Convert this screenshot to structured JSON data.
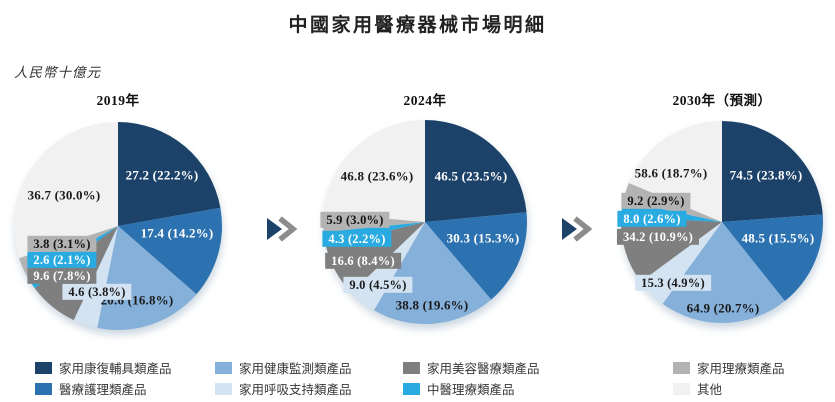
{
  "chart_data": {
    "type": "pie",
    "title": "中國家用醫療器械市場明細",
    "unit_label": "人民幣十億元",
    "categories": [
      "家用康復輔具類產品",
      "醫療護理類產品",
      "家用健康監測類產品",
      "家用呼吸支持類產品",
      "家用美容醫療類產品",
      "中醫理療類產品",
      "家用理療類產品",
      "其他"
    ],
    "colors": [
      "#1d4269",
      "#2d72b0",
      "#85b0da",
      "#d3e3f2",
      "#7f7f7f",
      "#29abe2",
      "#b3b3b3",
      "#f1f1f1"
    ],
    "pies": [
      {
        "year_label": "2019年",
        "values": [
          27.2,
          17.4,
          20.6,
          4.6,
          9.6,
          2.6,
          3.8,
          36.7
        ],
        "percents": [
          22.2,
          14.2,
          16.8,
          3.8,
          7.8,
          2.1,
          3.1,
          30.0
        ]
      },
      {
        "year_label": "2024年",
        "values": [
          46.5,
          30.3,
          38.8,
          9.0,
          16.6,
          4.3,
          5.9,
          46.8
        ],
        "percents": [
          23.5,
          15.3,
          19.6,
          4.5,
          8.4,
          2.2,
          3.0,
          23.6
        ]
      },
      {
        "year_label": "2030年（預測）",
        "values": [
          74.5,
          48.5,
          64.9,
          15.3,
          34.2,
          8.0,
          9.2,
          58.6
        ],
        "percents": [
          23.8,
          15.5,
          20.7,
          4.9,
          10.9,
          2.6,
          2.9,
          18.7
        ]
      }
    ],
    "legend_position": "bottom",
    "start_angle": "12-oclock",
    "direction": "clockwise"
  },
  "decor": {
    "arrow_triangle_color": "#1d4269",
    "arrow_chevron_color": "#8c8c8c"
  }
}
